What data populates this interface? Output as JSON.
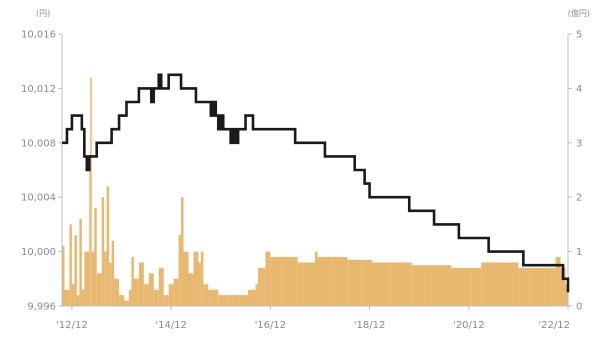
{
  "chart_data": {
    "type": "line",
    "left_axis": {
      "unit": "(円)",
      "ylim": [
        9996,
        10016
      ],
      "ticks": [
        9996,
        10000,
        10004,
        10008,
        10012,
        10016
      ],
      "tick_labels": [
        "9,996",
        "10,000",
        "10,004",
        "10,008",
        "10,012",
        "10,016"
      ]
    },
    "right_axis": {
      "unit": "(億円)",
      "ylim": [
        0,
        5
      ],
      "ticks": [
        0,
        1,
        2,
        3,
        4,
        5
      ],
      "tick_labels": [
        "0",
        "1",
        "2",
        "3",
        "4",
        "5"
      ]
    },
    "x_axis": {
      "xlim": [
        2012.75,
        2022.95
      ],
      "ticks": [
        2012.95,
        2014.95,
        2016.95,
        2018.95,
        2020.95,
        2022.95
      ],
      "tick_labels": [
        "'12/12",
        "'14/12",
        "'16/12",
        "'18/12",
        "'20/12",
        "'22/12"
      ]
    },
    "series": [
      {
        "axis": "left",
        "style": "step",
        "color": "#1a1a1a",
        "points": [
          [
            2012.75,
            10008
          ],
          [
            2012.85,
            10009
          ],
          [
            2012.95,
            10010
          ],
          [
            2013.1,
            10010
          ],
          [
            2013.15,
            10009
          ],
          [
            2013.2,
            10007
          ],
          [
            2013.25,
            10006
          ],
          [
            2013.3,
            10007
          ],
          [
            2013.45,
            10008
          ],
          [
            2013.6,
            10008
          ],
          [
            2013.75,
            10009
          ],
          [
            2013.9,
            10010
          ],
          [
            2014.05,
            10011
          ],
          [
            2014.2,
            10011
          ],
          [
            2014.3,
            10012
          ],
          [
            2014.5,
            10012
          ],
          [
            2014.55,
            10011
          ],
          [
            2014.6,
            10012
          ],
          [
            2014.7,
            10013
          ],
          [
            2014.75,
            10012
          ],
          [
            2014.8,
            10012
          ],
          [
            2014.9,
            10013
          ],
          [
            2015.05,
            10013
          ],
          [
            2015.15,
            10012
          ],
          [
            2015.3,
            10012
          ],
          [
            2015.45,
            10011
          ],
          [
            2015.65,
            10011
          ],
          [
            2015.75,
            10010
          ],
          [
            2015.8,
            10011
          ],
          [
            2015.85,
            10010
          ],
          [
            2015.9,
            10009
          ],
          [
            2015.95,
            10010
          ],
          [
            2016.0,
            10009
          ],
          [
            2016.05,
            10009
          ],
          [
            2016.15,
            10008
          ],
          [
            2016.2,
            10009
          ],
          [
            2016.25,
            10008
          ],
          [
            2016.3,
            10009
          ],
          [
            2016.35,
            10009
          ],
          [
            2016.45,
            10010
          ],
          [
            2016.6,
            10009
          ],
          [
            2017.1,
            10009
          ],
          [
            2017.45,
            10008
          ],
          [
            2017.85,
            10008
          ],
          [
            2018.05,
            10007
          ],
          [
            2018.45,
            10007
          ],
          [
            2018.65,
            10006
          ],
          [
            2018.85,
            10005
          ],
          [
            2018.95,
            10004
          ],
          [
            2019.5,
            10004
          ],
          [
            2019.75,
            10003
          ],
          [
            2020.1,
            10003
          ],
          [
            2020.25,
            10002
          ],
          [
            2020.6,
            10002
          ],
          [
            2020.75,
            10001
          ],
          [
            2021.15,
            10001
          ],
          [
            2021.35,
            10000
          ],
          [
            2021.8,
            10000
          ],
          [
            2022.05,
            9999
          ],
          [
            2022.75,
            9999
          ],
          [
            2022.85,
            9998
          ],
          [
            2022.95,
            9997
          ]
        ]
      },
      {
        "axis": "right",
        "style": "area",
        "color": "#e8b870",
        "points": [
          [
            2012.75,
            1.1
          ],
          [
            2012.8,
            0.3
          ],
          [
            2012.9,
            1.5
          ],
          [
            2012.95,
            0.4
          ],
          [
            2013.0,
            1.3
          ],
          [
            2013.05,
            0.2
          ],
          [
            2013.1,
            1.6
          ],
          [
            2013.15,
            0.3
          ],
          [
            2013.2,
            1.0
          ],
          [
            2013.3,
            2.5
          ],
          [
            2013.32,
            4.2
          ],
          [
            2013.35,
            1.0
          ],
          [
            2013.4,
            1.8
          ],
          [
            2013.45,
            0.6
          ],
          [
            2013.55,
            2.0
          ],
          [
            2013.6,
            1.0
          ],
          [
            2013.65,
            2.2
          ],
          [
            2013.7,
            0.8
          ],
          [
            2013.75,
            1.2
          ],
          [
            2013.8,
            0.5
          ],
          [
            2013.9,
            0.2
          ],
          [
            2014.0,
            0.1
          ],
          [
            2014.1,
            0.3
          ],
          [
            2014.15,
            0.9
          ],
          [
            2014.2,
            0.5
          ],
          [
            2014.3,
            0.8
          ],
          [
            2014.4,
            0.4
          ],
          [
            2014.5,
            0.6
          ],
          [
            2014.6,
            0.3
          ],
          [
            2014.7,
            0.7
          ],
          [
            2014.8,
            0.2
          ],
          [
            2014.9,
            0.4
          ],
          [
            2015.0,
            0.5
          ],
          [
            2015.1,
            1.3
          ],
          [
            2015.15,
            2.0
          ],
          [
            2015.2,
            1.0
          ],
          [
            2015.3,
            0.6
          ],
          [
            2015.4,
            1.0
          ],
          [
            2015.5,
            0.8
          ],
          [
            2015.55,
            1.0
          ],
          [
            2015.6,
            0.4
          ],
          [
            2015.7,
            0.3
          ],
          [
            2015.9,
            0.2
          ],
          [
            2016.1,
            0.2
          ],
          [
            2016.3,
            0.2
          ],
          [
            2016.5,
            0.3
          ],
          [
            2016.65,
            0.4
          ],
          [
            2016.7,
            0.7
          ],
          [
            2016.8,
            0.7
          ],
          [
            2016.85,
            1.0
          ],
          [
            2016.95,
            0.9
          ],
          [
            2017.2,
            0.9
          ],
          [
            2017.5,
            0.8
          ],
          [
            2017.8,
            0.8
          ],
          [
            2017.85,
            1.0
          ],
          [
            2017.9,
            0.9
          ],
          [
            2018.2,
            0.9
          ],
          [
            2018.5,
            0.85
          ],
          [
            2018.8,
            0.85
          ],
          [
            2019.0,
            0.8
          ],
          [
            2019.4,
            0.8
          ],
          [
            2019.8,
            0.75
          ],
          [
            2020.2,
            0.75
          ],
          [
            2020.6,
            0.7
          ],
          [
            2021.0,
            0.7
          ],
          [
            2021.2,
            0.8
          ],
          [
            2021.6,
            0.8
          ],
          [
            2021.95,
            0.7
          ],
          [
            2022.2,
            0.7
          ],
          [
            2022.6,
            0.7
          ],
          [
            2022.7,
            0.9
          ],
          [
            2022.8,
            0.7
          ],
          [
            2022.9,
            0.4
          ],
          [
            2022.95,
            0.2
          ]
        ]
      }
    ]
  }
}
